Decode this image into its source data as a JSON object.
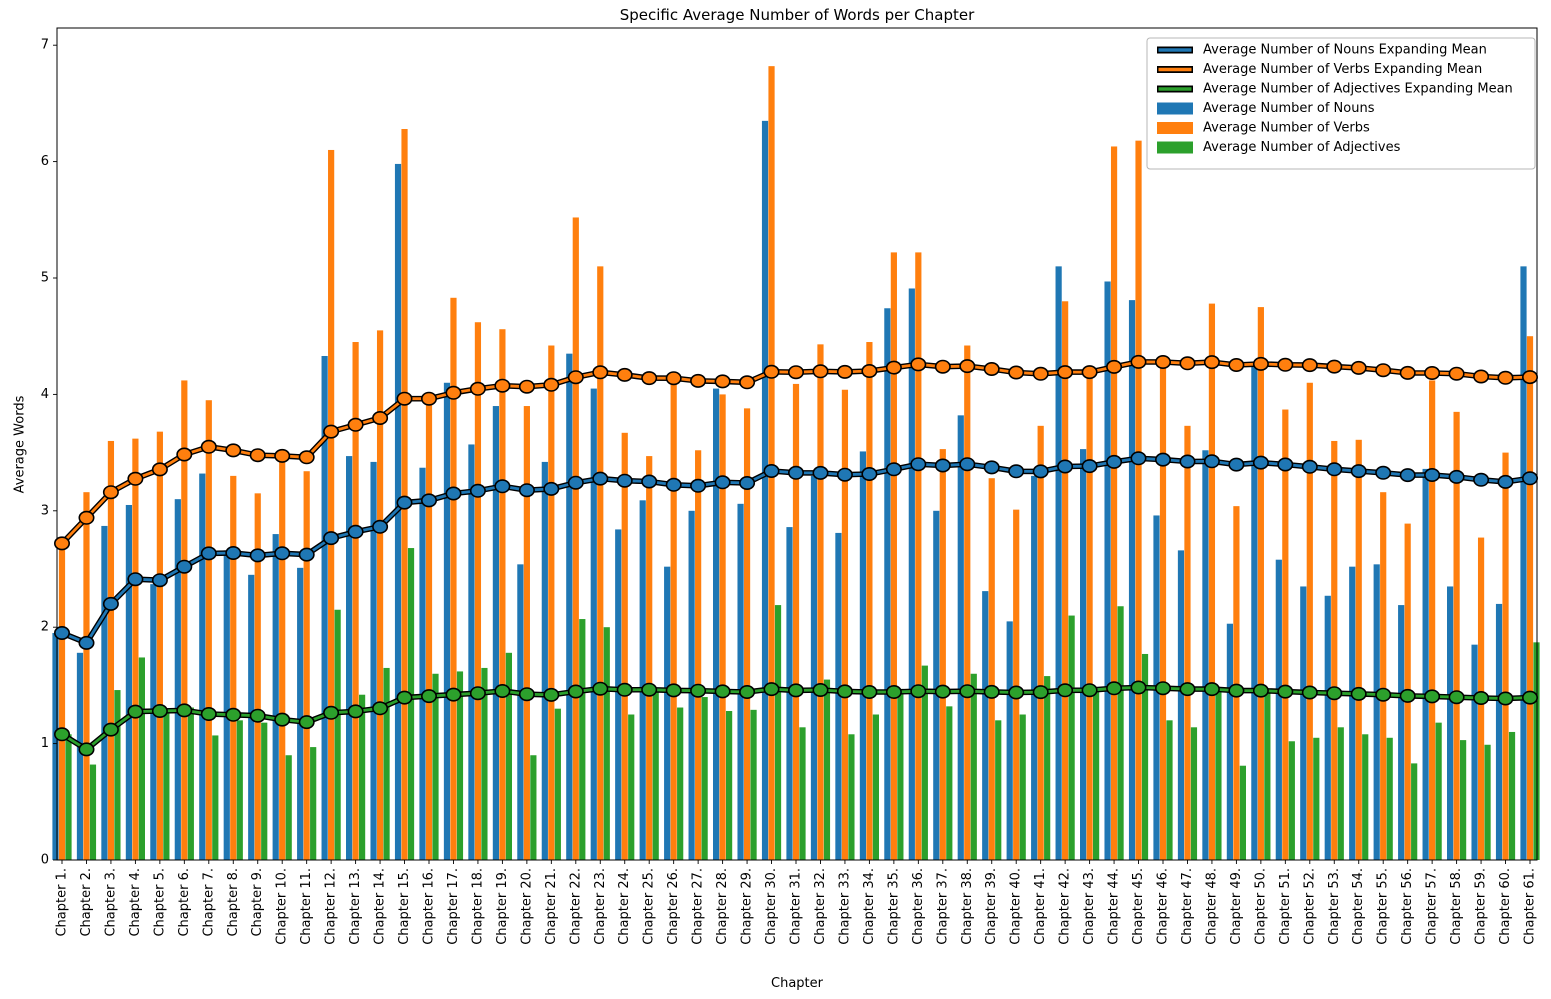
{
  "title": "Specific Average Number of Words per Chapter",
  "axes": {
    "xlabel": "Chapter",
    "ylabel": "Average Words",
    "ylim": [
      0,
      7
    ],
    "yticks": [
      "0",
      "1",
      "2",
      "3",
      "4",
      "5",
      "6",
      "7"
    ],
    "grid": false
  },
  "chart_data": {
    "type": "bar",
    "title": "Specific Average Number of Words per Chapter",
    "xlabel": "Chapter",
    "ylabel": "Average Words",
    "ylim": [
      0,
      7
    ],
    "grid": false,
    "legend_position": "upper right",
    "categories": [
      "Chapter 1.",
      "Chapter 2.",
      "Chapter 3.",
      "Chapter 4.",
      "Chapter 5.",
      "Chapter 6.",
      "Chapter 7.",
      "Chapter 8.",
      "Chapter 9.",
      "Chapter 10.",
      "Chapter 11.",
      "Chapter 12.",
      "Chapter 13.",
      "Chapter 14.",
      "Chapter 15.",
      "Chapter 16.",
      "Chapter 17.",
      "Chapter 18.",
      "Chapter 19.",
      "Chapter 20.",
      "Chapter 21.",
      "Chapter 22.",
      "Chapter 23.",
      "Chapter 24.",
      "Chapter 25.",
      "Chapter 26.",
      "Chapter 27.",
      "Chapter 28.",
      "Chapter 29.",
      "Chapter 30.",
      "Chapter 31.",
      "Chapter 32.",
      "Chapter 33.",
      "Chapter 34.",
      "Chapter 35.",
      "Chapter 36.",
      "Chapter 37.",
      "Chapter 38.",
      "Chapter 39.",
      "Chapter 40.",
      "Chapter 41.",
      "Chapter 42.",
      "Chapter 43.",
      "Chapter 44.",
      "Chapter 45.",
      "Chapter 46.",
      "Chapter 47.",
      "Chapter 48.",
      "Chapter 49.",
      "Chapter 50.",
      "Chapter 51.",
      "Chapter 52.",
      "Chapter 53.",
      "Chapter 54.",
      "Chapter 55.",
      "Chapter 56.",
      "Chapter 57.",
      "Chapter 58.",
      "Chapter 59.",
      "Chapter 60.",
      "Chapter 61."
    ],
    "series": [
      {
        "name": "Average Number of Nouns",
        "type": "bar",
        "color": "#1f77b4",
        "values": [
          1.95,
          1.78,
          2.87,
          3.05,
          2.37,
          3.1,
          3.32,
          2.66,
          2.45,
          2.8,
          2.51,
          4.33,
          3.47,
          3.42,
          5.98,
          3.37,
          4.1,
          3.57,
          3.9,
          2.54,
          3.42,
          4.35,
          4.05,
          2.84,
          3.09,
          2.52,
          3.0,
          4.05,
          3.06,
          6.35,
          2.86,
          3.3,
          2.81,
          3.51,
          4.74,
          4.91,
          3.0,
          3.82,
          2.31,
          2.05,
          3.3,
          5.1,
          3.53,
          4.97,
          4.81,
          2.96,
          2.66,
          3.52,
          2.03,
          4.25,
          2.58,
          2.35,
          2.27,
          2.52,
          2.54,
          2.19,
          3.36,
          2.35,
          1.85,
          2.2,
          5.1
        ]
      },
      {
        "name": "Average Number of Verbs",
        "type": "bar",
        "color": "#ff7f0e",
        "values": [
          2.72,
          3.16,
          3.6,
          3.62,
          3.68,
          4.12,
          3.95,
          3.3,
          3.15,
          3.42,
          3.34,
          6.1,
          4.45,
          4.55,
          6.28,
          3.97,
          4.83,
          4.62,
          4.56,
          3.9,
          4.42,
          5.52,
          5.1,
          3.67,
          3.47,
          4.11,
          3.52,
          4.0,
          3.88,
          6.82,
          4.09,
          4.43,
          4.04,
          4.45,
          5.22,
          5.22,
          3.53,
          4.42,
          3.28,
          3.01,
          3.73,
          4.8,
          4.2,
          6.13,
          6.18,
          4.25,
          3.73,
          4.78,
          3.04,
          4.75,
          3.87,
          4.1,
          3.6,
          3.61,
          3.16,
          2.89,
          4.12,
          3.85,
          2.77,
          3.5,
          4.5
        ]
      },
      {
        "name": "Average Number of Adjectives",
        "type": "bar",
        "color": "#2ca02c",
        "values": [
          1.08,
          0.82,
          1.46,
          1.74,
          1.3,
          1.31,
          1.07,
          1.2,
          1.18,
          0.9,
          0.97,
          2.15,
          1.42,
          1.65,
          2.68,
          1.6,
          1.62,
          1.65,
          1.78,
          0.9,
          1.3,
          2.07,
          2.0,
          1.25,
          1.47,
          1.31,
          1.4,
          1.28,
          1.29,
          2.19,
          1.14,
          1.55,
          1.08,
          1.25,
          1.47,
          1.67,
          1.32,
          1.6,
          1.2,
          1.25,
          1.58,
          2.1,
          1.48,
          2.18,
          1.77,
          1.2,
          1.14,
          1.47,
          0.81,
          1.46,
          1.02,
          1.05,
          1.14,
          1.08,
          1.05,
          0.83,
          1.18,
          1.03,
          0.99,
          1.1,
          1.87
        ]
      },
      {
        "name": "Average Number of Nouns Expanding Mean",
        "type": "line",
        "color": "#1f77b4",
        "derived": "expanding_mean",
        "source": "Average Number of Nouns"
      },
      {
        "name": "Average Number of Verbs Expanding Mean",
        "type": "line",
        "color": "#ff7f0e",
        "derived": "expanding_mean",
        "source": "Average Number of Verbs"
      },
      {
        "name": "Average Number of Adjectives Expanding Mean",
        "type": "line",
        "color": "#2ca02c",
        "derived": "expanding_mean",
        "source": "Average Number of Adjectives"
      }
    ]
  },
  "legend": {
    "entries": [
      {
        "label": "Average Number of Nouns Expanding Mean",
        "type": "line",
        "color": "#1f77b4"
      },
      {
        "label": "Average Number of Verbs Expanding Mean",
        "type": "line",
        "color": "#ff7f0e"
      },
      {
        "label": "Average Number of Adjectives Expanding Mean",
        "type": "line",
        "color": "#2ca02c"
      },
      {
        "label": "Average Number of Nouns",
        "type": "patch",
        "color": "#1f77b4"
      },
      {
        "label": "Average Number of Verbs",
        "type": "patch",
        "color": "#ff7f0e"
      },
      {
        "label": "Average Number of Adjectives",
        "type": "patch",
        "color": "#2ca02c"
      }
    ]
  }
}
